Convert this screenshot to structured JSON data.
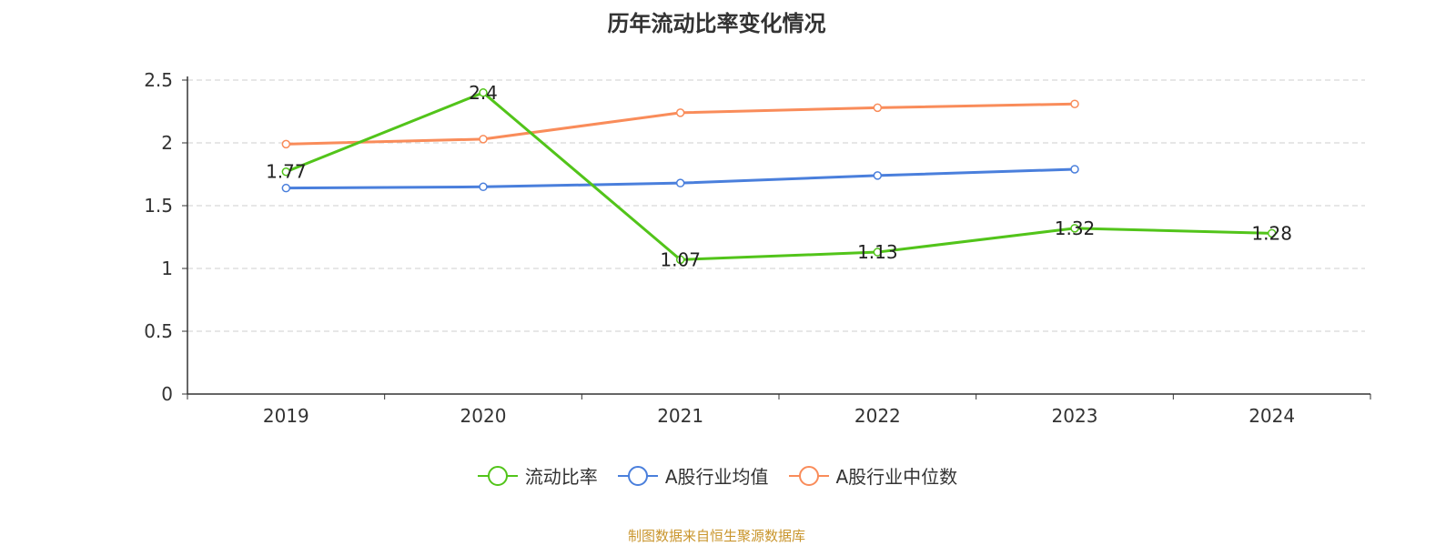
{
  "chart_data": {
    "type": "line",
    "title": "历年流动比率变化情况",
    "categories": [
      "2019",
      "2020",
      "2021",
      "2022",
      "2023",
      "2024"
    ],
    "ylim": [
      0,
      2.5
    ],
    "yticks": [
      "0",
      "0.5",
      "1",
      "1.5",
      "2",
      "2.5"
    ],
    "grid": true,
    "legend_position": "bottom",
    "series": [
      {
        "name": "流动比率",
        "color": "#52c41a",
        "values": [
          1.77,
          2.4,
          1.07,
          1.13,
          1.32,
          1.28
        ],
        "labels": [
          "1.77",
          "2.4",
          "1.07",
          "1.13",
          "1.32",
          "1.28"
        ],
        "show_labels": true
      },
      {
        "name": "A股行业均值",
        "color": "#4a7fdc",
        "values": [
          1.64,
          1.65,
          1.68,
          1.74,
          1.79,
          null
        ],
        "show_labels": false
      },
      {
        "name": "A股行业中位数",
        "color": "#f98c5a",
        "values": [
          1.99,
          2.03,
          2.24,
          2.28,
          2.31,
          null
        ],
        "show_labels": false
      }
    ]
  },
  "source_text": "制图数据来自恒生聚源数据库"
}
